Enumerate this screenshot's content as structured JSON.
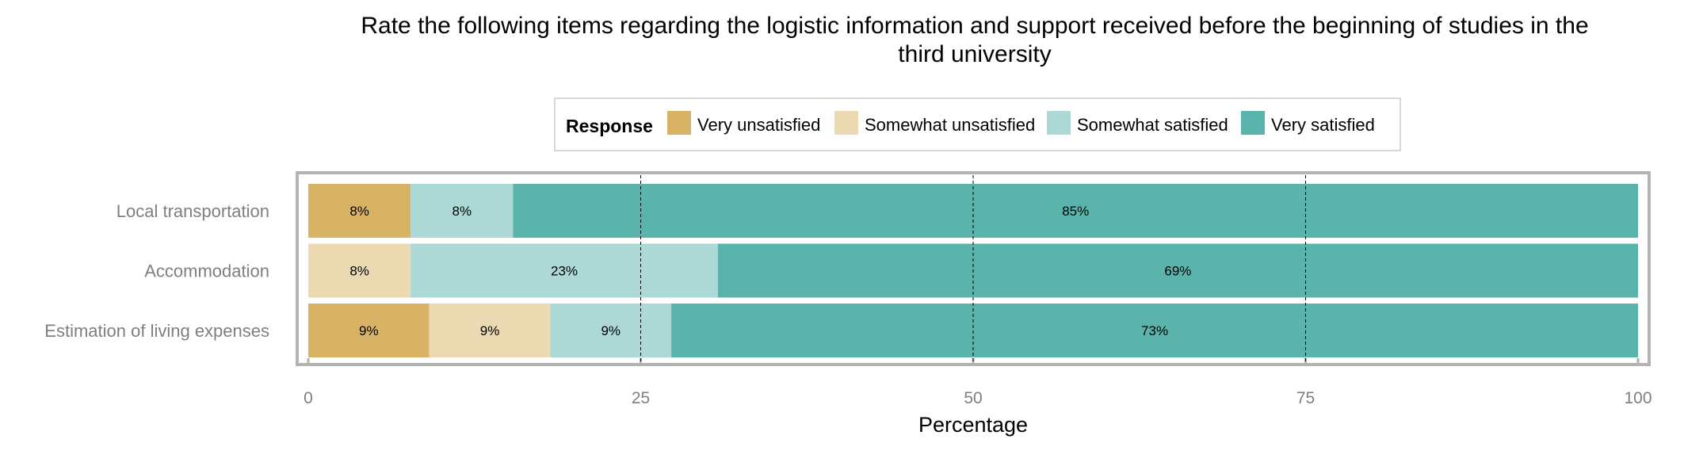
{
  "chart_data": {
    "type": "bar",
    "orientation": "horizontal",
    "stacked": true,
    "title": "Rate the following items regarding the logistic information and support received before the beginning of studies in the third university",
    "title_lines": [
      "Rate the following items regarding the logistic information and support received before the beginning of studies in the",
      "third university"
    ],
    "xlabel": "Percentage",
    "ylabel": "",
    "xlim": [
      0,
      100
    ],
    "x_ticks": [
      0,
      25,
      50,
      75,
      100
    ],
    "x_tick_labels": [
      "0",
      "25",
      "50",
      "75",
      "100"
    ],
    "dashed_reference_lines": [
      25,
      50,
      75
    ],
    "legend": {
      "title": "Response",
      "position": "top",
      "entries": [
        {
          "name": "Very unsatisfied",
          "color": "#d8b365"
        },
        {
          "name": "Somewhat unsatisfied",
          "color": "#ebd9b2"
        },
        {
          "name": "Somewhat satisfied",
          "color": "#acd9d5"
        },
        {
          "name": "Very satisfied",
          "color": "#5ab4ac"
        }
      ]
    },
    "categories": [
      "Local transportation",
      "Accommodation",
      "Estimation of living expenses"
    ],
    "series": [
      {
        "name": "Very unsatisfied",
        "color": "#d8b365",
        "values": [
          7.7,
          0,
          9.1
        ],
        "labels": [
          "8%",
          "",
          "9%"
        ]
      },
      {
        "name": "Somewhat unsatisfied",
        "color": "#ebd9b2",
        "values": [
          0,
          7.7,
          9.1
        ],
        "labels": [
          "",
          "8%",
          "9%"
        ]
      },
      {
        "name": "Somewhat satisfied",
        "color": "#acd9d5",
        "values": [
          7.7,
          23.1,
          9.1
        ],
        "labels": [
          "8%",
          "23%",
          "9%"
        ]
      },
      {
        "name": "Very satisfied",
        "color": "#5ab4ac",
        "values": [
          84.6,
          69.2,
          72.7
        ],
        "labels": [
          "85%",
          "69%",
          "73%"
        ]
      }
    ]
  }
}
